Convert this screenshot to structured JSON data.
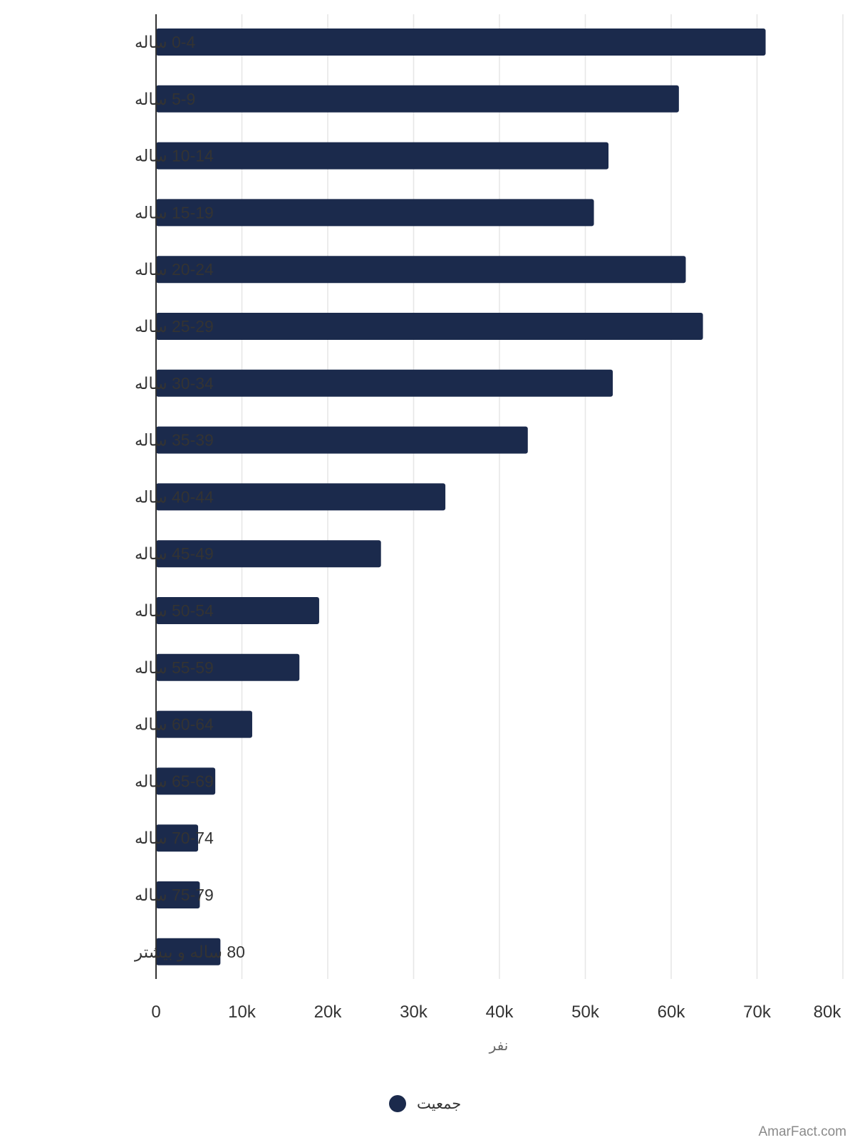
{
  "chart_data": {
    "type": "bar",
    "orientation": "horizontal",
    "categories": [
      "0-4 ساله",
      "5-9 ساله",
      "10-14 ساله",
      "15-19 ساله",
      "20-24 ساله",
      "25-29 ساله",
      "30-34 ساله",
      "35-39 ساله",
      "40-44 ساله",
      "45-49 ساله",
      "50-54 ساله",
      "55-59 ساله",
      "60-64 ساله",
      "65-69 ساله",
      "70-74 ساله",
      "75-79 ساله",
      "80 ساله و بیشتر"
    ],
    "series": [
      {
        "name": "جمعیت",
        "color": "#1b2a4c",
        "values": [
          71000,
          60900,
          52700,
          51000,
          61700,
          63700,
          53200,
          43300,
          33700,
          26200,
          19000,
          16700,
          11200,
          6900,
          4900,
          5100,
          7500
        ]
      }
    ],
    "xlabel": "نفر",
    "ylabel": "",
    "xlim": [
      0,
      80000
    ],
    "xticks": [
      {
        "value": 0,
        "label": "0"
      },
      {
        "value": 10000,
        "label": "10k"
      },
      {
        "value": 20000,
        "label": "20k"
      },
      {
        "value": 30000,
        "label": "30k"
      },
      {
        "value": 40000,
        "label": "40k"
      },
      {
        "value": 50000,
        "label": "50k"
      },
      {
        "value": 60000,
        "label": "60k"
      },
      {
        "value": 70000,
        "label": "70k"
      },
      {
        "value": 80000,
        "label": "80k"
      }
    ],
    "grid": "vertical",
    "legend": "bottom-center",
    "gridline_color": "#e6e6e6",
    "axis_color": "#333333"
  },
  "credit": "AmarFact.com"
}
